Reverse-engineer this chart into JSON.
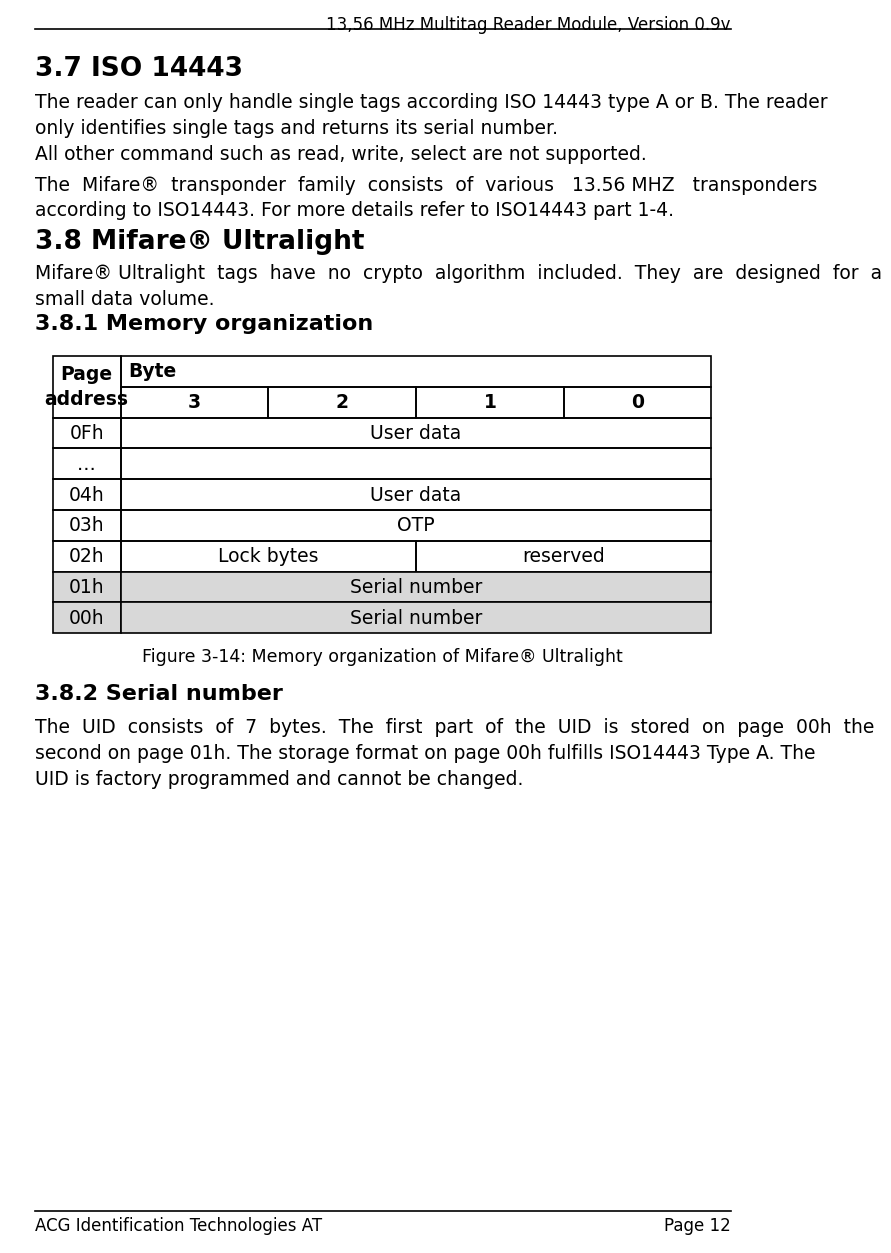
{
  "header_title": "13,56 MHz Multitag Reader Module, Version 0.9v",
  "footer_left": "ACG Identification Technologies AT",
  "footer_right": "Page 12",
  "section_37_title": "3.7 ISO 14443",
  "section_37_para1": "The reader can only handle single tags according ISO 14443 type A or B. The reader\nonly identifies single tags and returns its serial number.",
  "section_37_para2": "All other command such as read, write, select are not supported.",
  "section_37_para3": "The  Mifare®  transponder  family  consists  of  various   13.56 MHZ   transponders\naccording to ISO14443. For more details refer to ISO14443 part 1-4.",
  "section_38_title": "3.8 Mifare® Ultralight",
  "section_38_para1": "Mifare® Ultralight  tags  have  no  crypto  algorithm  included.  They  are  designed  for  a\nsmall data volume.",
  "section_381_title": "3.8.1 Memory organization",
  "table_byte_cols": [
    "3",
    "2",
    "1",
    "0"
  ],
  "table_rows": [
    {
      "addr": "0Fh",
      "content": "User data",
      "span": true,
      "gray": false
    },
    {
      "addr": "…",
      "content": "",
      "span": true,
      "gray": false
    },
    {
      "addr": "04h",
      "content": "User data",
      "span": true,
      "gray": false
    },
    {
      "addr": "03h",
      "content": "OTP",
      "span": true,
      "gray": false
    },
    {
      "addr": "02h",
      "content_left": "Lock bytes",
      "content_right": "reserved",
      "span": false,
      "gray": false
    },
    {
      "addr": "01h",
      "content": "Serial number",
      "span": true,
      "gray": true
    },
    {
      "addr": "00h",
      "content": "Serial number",
      "span": true,
      "gray": true
    }
  ],
  "table_caption": "Figure 3-14: Memory organization of Mifare® Ultralight",
  "section_382_title": "3.8.2 Serial number",
  "section_382_para1": "The  UID  consists  of  7  bytes.  The  first  part  of  the  UID  is  stored  on  page  00h  the\nsecond on page 01h. The storage format on page 00h fulfills ISO14443 Type A. The\nUID is factory programmed and cannot be changed.",
  "bg_color": "#ffffff",
  "text_color": "#000000",
  "gray_color": "#d8d8d8",
  "line_color": "#000000",
  "body_font_size": 13.5,
  "header_font_size": 12.0,
  "section_title_font_size": 19,
  "subsection_title_font_size": 16,
  "caption_font_size": 12.5
}
